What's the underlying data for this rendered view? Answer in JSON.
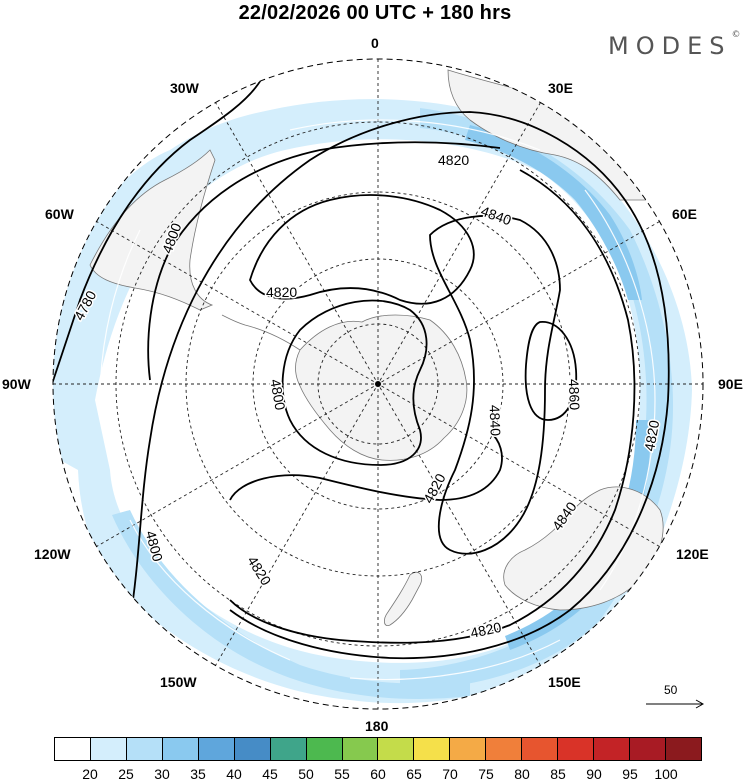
{
  "title": "22/02/2026  00 UTC  + 180 hrs",
  "brand": "MODES",
  "brand_mark": "©",
  "longitude_labels": {
    "lon_0": "0",
    "lon_30e": "30E",
    "lon_60e": "60E",
    "lon_90e": "90E",
    "lon_120e": "120E",
    "lon_150e": "150E",
    "lon_180": "180",
    "lon_150w": "150W",
    "lon_120w": "120W",
    "lon_90w": "90W",
    "lon_60w": "60W",
    "lon_30w": "30W"
  },
  "contour_labels": {
    "c4780": "4780",
    "c4800_west": "4800",
    "c4800_south": "4800",
    "c4800_antarctica": "4800",
    "c4820_north": "4820",
    "c4820_center": "4820",
    "c4820_south": "4820",
    "c4820_inner": "4820",
    "c4820_bottom": "4820",
    "c4820_east": "4820",
    "c4840_north": "4840",
    "c4840_center": "4840",
    "c4840_east": "4840",
    "c4860": "4860"
  },
  "reference_vector": "50",
  "colorbar": {
    "colors": [
      "#ffffff",
      "#d4eefc",
      "#b5e0f8",
      "#8ac9ef",
      "#5fa6dc",
      "#468cc6",
      "#3fa58a",
      "#4db94f",
      "#86c94e",
      "#c4dc4a",
      "#f5e04a",
      "#f4aa46",
      "#f07f3a",
      "#e7552f",
      "#d93328",
      "#c32326",
      "#a81b24",
      "#8b1a1e"
    ],
    "labels": [
      "20",
      "25",
      "30",
      "35",
      "40",
      "45",
      "50",
      "55",
      "60",
      "65",
      "70",
      "75",
      "80",
      "85",
      "90",
      "95",
      "100"
    ]
  }
}
